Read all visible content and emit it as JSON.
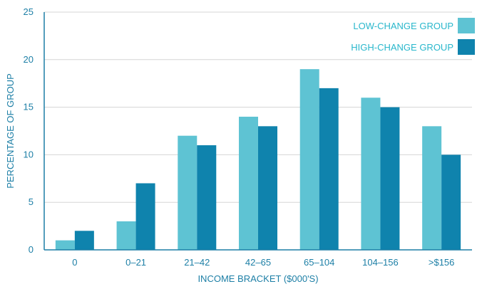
{
  "chart_data": {
    "type": "bar",
    "title": "",
    "xlabel": "INCOME BRACKET ($000'S)",
    "ylabel": "PERCENTAGE OF GROUP",
    "categories": [
      "0",
      "0–21",
      "21–42",
      "42–65",
      "65–104",
      "104–156",
      ">$156"
    ],
    "series": [
      {
        "name": "LOW-CHANGE GROUP",
        "values": [
          1,
          3,
          12,
          14,
          19,
          16,
          13
        ],
        "color": "#5ec3d3"
      },
      {
        "name": "HIGH-CHANGE GROUP",
        "values": [
          2,
          7,
          11,
          13,
          17,
          15,
          10
        ],
        "color": "#0f83ad"
      }
    ],
    "ylim": [
      0,
      25
    ],
    "yticks": [
      "0",
      "5",
      "10",
      "15",
      "20",
      "25"
    ],
    "grid": true,
    "legend_position": "top-right",
    "colors": {
      "axis_text": "#1d7fa6",
      "legend_text": "#29b7cc",
      "grid": "#d6d6d6",
      "axis_line": "#1d7fa6"
    }
  }
}
